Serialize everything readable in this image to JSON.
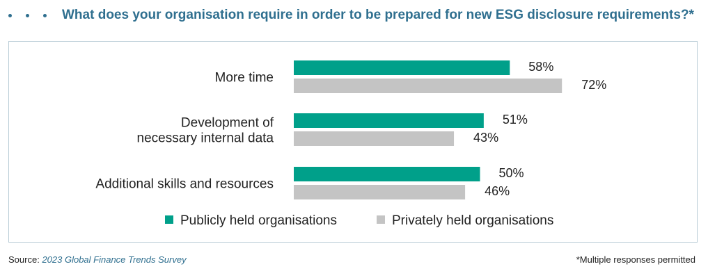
{
  "header": {
    "title": "What does your organisation require in order to be prepared for new ESG disclosure requirements?*"
  },
  "chart_data": {
    "type": "bar",
    "orientation": "horizontal",
    "categories": [
      [
        "More time"
      ],
      [
        "Development of",
        "necessary internal data"
      ],
      [
        "Additional skills and resources"
      ]
    ],
    "series": [
      {
        "name": "Publicly held organisations",
        "values": [
          58,
          51,
          50
        ],
        "color": "#00a08a"
      },
      {
        "name": "Privately held organisations",
        "values": [
          72,
          43,
          46
        ],
        "color": "#c4c4c4"
      }
    ],
    "value_suffix": "%",
    "xlim": [
      0,
      100
    ],
    "grid": false,
    "legend_position": "bottom"
  },
  "footer": {
    "source_label": "Source:",
    "source_title": "2023 Global Finance Trends Survey",
    "note": "*Multiple responses permitted"
  },
  "colors": {
    "title": "#2f6f8f",
    "public": "#00a08a",
    "private": "#c4c4c4",
    "border": "#b9ccd6"
  }
}
